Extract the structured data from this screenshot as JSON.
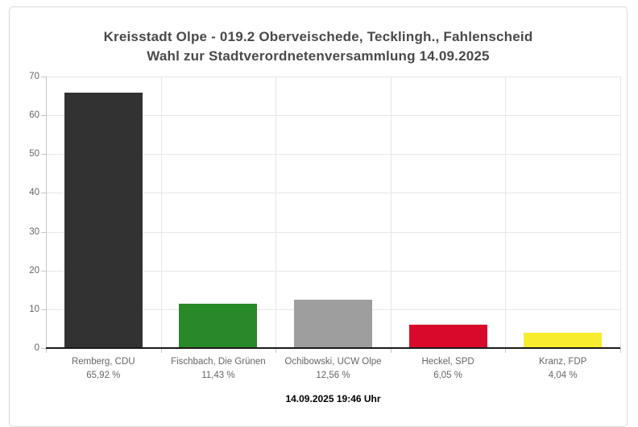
{
  "chart_data": {
    "type": "bar",
    "title": "Kreisstadt Olpe - 019.2 Oberveischede, Tecklingh., Fahlenscheid",
    "subtitle": "Wahl zur Stadtverordnetenversammlung 14.09.2025",
    "categories": [
      "Remberg, CDU",
      "Fischbach, Die Grünen",
      "Ochibowski, UCW Olpe",
      "Heckel, SPD",
      "Kranz, FDP"
    ],
    "values": [
      65.92,
      11.43,
      12.56,
      6.05,
      4.04
    ],
    "value_labels": [
      "65,92 %",
      "11,43 %",
      "12,56 %",
      "6,05 %",
      "4,04 %"
    ],
    "bar_colors": [
      "#323232",
      "#278927",
      "#9e9e9e",
      "#d8092b",
      "#f7ec2e"
    ],
    "xlabel": "",
    "ylabel": "",
    "ylim": [
      0,
      70
    ],
    "yticks": [
      0,
      10,
      20,
      30,
      40,
      50,
      60,
      70
    ],
    "grid": true,
    "legend": "none",
    "footer": "14.09.2025 19:46 Uhr"
  },
  "colors": {
    "title": "#4a4a4a",
    "axis_label": "#666666",
    "gridline": "#e6e6e6",
    "axis_line": "#1a1a1a",
    "background": "#ffffff",
    "card_border": "#d8d8d8"
  }
}
